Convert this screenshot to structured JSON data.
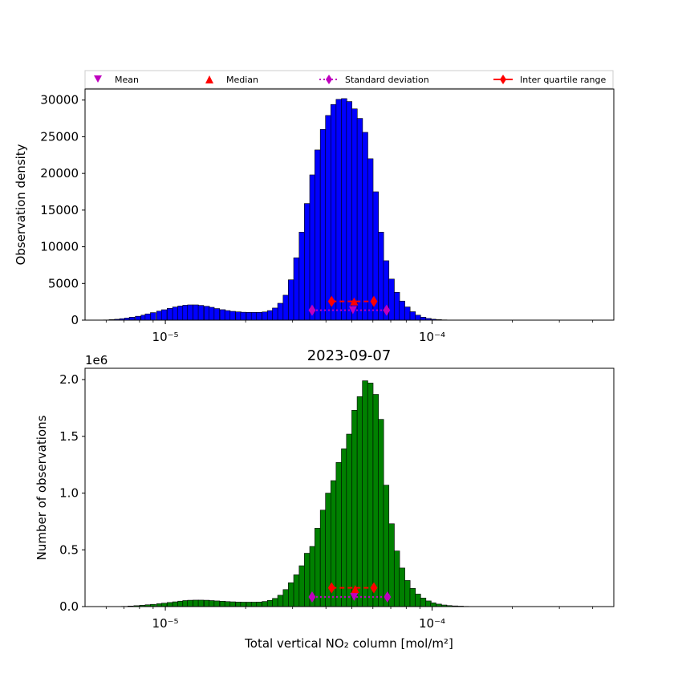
{
  "chart_data": [
    {
      "type": "bar",
      "subtype": "histogram",
      "title": "",
      "xlabel": "",
      "ylabel": "Observation density",
      "xscale": "log",
      "xlim": [
        5e-06,
        0.00048
      ],
      "ylim": [
        0,
        31500
      ],
      "xticks": [
        {
          "value": 1e-05,
          "label": "10⁻⁵"
        },
        {
          "value": 0.0001,
          "label": "10⁻⁴"
        }
      ],
      "yticks": [
        0,
        5000,
        10000,
        15000,
        20000,
        25000,
        30000
      ],
      "bar_color": "#0000ff",
      "bin_log_width": 0.0205,
      "bins": [
        [
          6e-06,
          30
        ],
        [
          6.3e-06,
          70
        ],
        [
          6.6e-06,
          120
        ],
        [
          6.9e-06,
          200
        ],
        [
          7.2e-06,
          290
        ],
        [
          7.5e-06,
          400
        ],
        [
          7.9e-06,
          530
        ],
        [
          8.3e-06,
          680
        ],
        [
          8.6e-06,
          850
        ],
        [
          9e-06,
          1030
        ],
        [
          9.5e-06,
          1230
        ],
        [
          9.9e-06,
          1420
        ],
        [
          1.04e-05,
          1600
        ],
        [
          1.09e-05,
          1790
        ],
        [
          1.14e-05,
          1930
        ],
        [
          1.19e-05,
          2030
        ],
        [
          1.24e-05,
          2080
        ],
        [
          1.3e-05,
          2080
        ],
        [
          1.36e-05,
          2010
        ],
        [
          1.43e-05,
          1890
        ],
        [
          1.49e-05,
          1750
        ],
        [
          1.56e-05,
          1580
        ],
        [
          1.64e-05,
          1430
        ],
        [
          1.71e-05,
          1300
        ],
        [
          1.79e-05,
          1200
        ],
        [
          1.88e-05,
          1130
        ],
        [
          1.96e-05,
          1080
        ],
        [
          2.06e-05,
          1060
        ],
        [
          2.15e-05,
          1060
        ],
        [
          2.25e-05,
          1060
        ],
        [
          2.36e-05,
          1120
        ],
        [
          2.47e-05,
          1300
        ],
        [
          2.58e-05,
          1650
        ],
        [
          2.7e-05,
          2300
        ],
        [
          2.83e-05,
          3400
        ],
        [
          2.96e-05,
          5500
        ],
        [
          3.1e-05,
          8500
        ],
        [
          3.25e-05,
          12000
        ],
        [
          3.4e-05,
          15900
        ],
        [
          3.56e-05,
          19800
        ],
        [
          3.72e-05,
          23200
        ],
        [
          3.9e-05,
          26000
        ],
        [
          4.08e-05,
          27900
        ],
        [
          4.27e-05,
          29400
        ],
        [
          4.47e-05,
          30100
        ],
        [
          4.68e-05,
          30200
        ],
        [
          4.89e-05,
          29800
        ],
        [
          5.12e-05,
          28800
        ],
        [
          5.36e-05,
          27500
        ],
        [
          5.61e-05,
          25600
        ],
        [
          5.87e-05,
          22000
        ],
        [
          6.15e-05,
          17500
        ],
        [
          6.43e-05,
          12000
        ],
        [
          6.73e-05,
          8100
        ],
        [
          7.05e-05,
          5600
        ],
        [
          7.38e-05,
          3800
        ],
        [
          7.72e-05,
          2600
        ],
        [
          8.08e-05,
          1800
        ],
        [
          8.46e-05,
          1150
        ],
        [
          8.85e-05,
          680
        ],
        [
          9.26e-05,
          400
        ],
        [
          9.69e-05,
          230
        ],
        [
          0.000101,
          130
        ],
        [
          0.000106,
          70
        ],
        [
          0.000111,
          35
        ],
        [
          0.000116,
          20
        ],
        [
          0.000122,
          10
        ]
      ],
      "markers": {
        "mean": {
          "x": 5.05e-05,
          "y": 1350
        },
        "median": {
          "x": 5.1e-05,
          "y": 2550
        },
        "std": {
          "x": [
            3.55e-05,
            6.75e-05
          ],
          "y": 1350
        },
        "iqr": {
          "x": [
            4.2e-05,
            6.05e-05
          ],
          "y": 2550
        }
      }
    },
    {
      "type": "bar",
      "subtype": "histogram",
      "title": "2023-09-07",
      "xlabel": "Total vertical NO₂ column [mol/m²]",
      "ylabel": "Number of observations",
      "xscale": "log",
      "xlim": [
        5e-06,
        0.00048
      ],
      "ylim": [
        0,
        2.1
      ],
      "y_multiplier": "1e6",
      "xticks": [
        {
          "value": 1e-05,
          "label": "10⁻⁵"
        },
        {
          "value": 0.0001,
          "label": "10⁻⁴"
        }
      ],
      "yticks": [
        {
          "value": 0,
          "label": "0.0"
        },
        {
          "value": 0.5,
          "label": "0.5"
        },
        {
          "value": 1.0,
          "label": "1.0"
        },
        {
          "value": 1.5,
          "label": "1.5"
        },
        {
          "value": 2.0,
          "label": "2.0"
        }
      ],
      "bar_color": "#008000",
      "bin_log_width": 0.0205,
      "bins": [
        [
          7e-06,
          0.002
        ],
        [
          7.4e-06,
          0.005
        ],
        [
          7.8e-06,
          0.008
        ],
        [
          8.2e-06,
          0.012
        ],
        [
          8.6e-06,
          0.016
        ],
        [
          9e-06,
          0.02
        ],
        [
          9.5e-06,
          0.025
        ],
        [
          9.9e-06,
          0.03
        ],
        [
          1.04e-05,
          0.036
        ],
        [
          1.09e-05,
          0.042
        ],
        [
          1.14e-05,
          0.048
        ],
        [
          1.19e-05,
          0.053
        ],
        [
          1.24e-05,
          0.056
        ],
        [
          1.3e-05,
          0.057
        ],
        [
          1.36e-05,
          0.057
        ],
        [
          1.43e-05,
          0.056
        ],
        [
          1.49e-05,
          0.053
        ],
        [
          1.56e-05,
          0.05
        ],
        [
          1.64e-05,
          0.047
        ],
        [
          1.71e-05,
          0.044
        ],
        [
          1.79e-05,
          0.042
        ],
        [
          1.88e-05,
          0.04
        ],
        [
          1.96e-05,
          0.039
        ],
        [
          2.06e-05,
          0.039
        ],
        [
          2.15e-05,
          0.039
        ],
        [
          2.25e-05,
          0.04
        ],
        [
          2.36e-05,
          0.045
        ],
        [
          2.47e-05,
          0.055
        ],
        [
          2.58e-05,
          0.072
        ],
        [
          2.7e-05,
          0.1
        ],
        [
          2.83e-05,
          0.15
        ],
        [
          2.96e-05,
          0.21
        ],
        [
          3.1e-05,
          0.28
        ],
        [
          3.25e-05,
          0.36
        ],
        [
          3.4e-05,
          0.47
        ],
        [
          3.56e-05,
          0.53
        ],
        [
          3.72e-05,
          0.69
        ],
        [
          3.9e-05,
          0.85
        ],
        [
          4.08e-05,
          1.0
        ],
        [
          4.27e-05,
          1.11
        ],
        [
          4.47e-05,
          1.27
        ],
        [
          4.68e-05,
          1.39
        ],
        [
          4.89e-05,
          1.52
        ],
        [
          5.12e-05,
          1.73
        ],
        [
          5.36e-05,
          1.85
        ],
        [
          5.61e-05,
          1.99
        ],
        [
          5.87e-05,
          1.97
        ],
        [
          6.15e-05,
          1.87
        ],
        [
          6.43e-05,
          1.65
        ],
        [
          6.73e-05,
          1.07
        ],
        [
          7.05e-05,
          0.73
        ],
        [
          7.38e-05,
          0.49
        ],
        [
          7.72e-05,
          0.34
        ],
        [
          8.08e-05,
          0.23
        ],
        [
          8.46e-05,
          0.16
        ],
        [
          8.85e-05,
          0.11
        ],
        [
          9.26e-05,
          0.075
        ],
        [
          9.69e-05,
          0.05
        ],
        [
          0.000101,
          0.033
        ],
        [
          0.000106,
          0.022
        ],
        [
          0.000111,
          0.014
        ],
        [
          0.000116,
          0.009
        ],
        [
          0.000122,
          0.006
        ],
        [
          0.000128,
          0.004
        ],
        [
          0.000134,
          0.002
        ],
        [
          0.00014,
          0.001
        ]
      ],
      "markers": {
        "mean": {
          "x": 5.1e-05,
          "y": 0.085
        },
        "median": {
          "x": 5.15e-05,
          "y": 0.155
        },
        "std": {
          "x": [
            3.55e-05,
            6.8e-05
          ],
          "y": 0.085
        },
        "iqr": {
          "x": [
            4.2e-05,
            6.05e-05
          ],
          "y": 0.165
        }
      }
    }
  ],
  "legend": {
    "placement": "top",
    "items": [
      {
        "label": "Mean",
        "marker": "triangle-down",
        "color": "#bf00bf"
      },
      {
        "label": "Median",
        "marker": "triangle-up",
        "color": "#ff0000"
      },
      {
        "label": "Standard deviation",
        "marker": "diamond-dotted",
        "color": "#bf00bf"
      },
      {
        "label": "Inter quartile range",
        "marker": "diamond-dashed",
        "color": "#ff0000"
      }
    ]
  }
}
